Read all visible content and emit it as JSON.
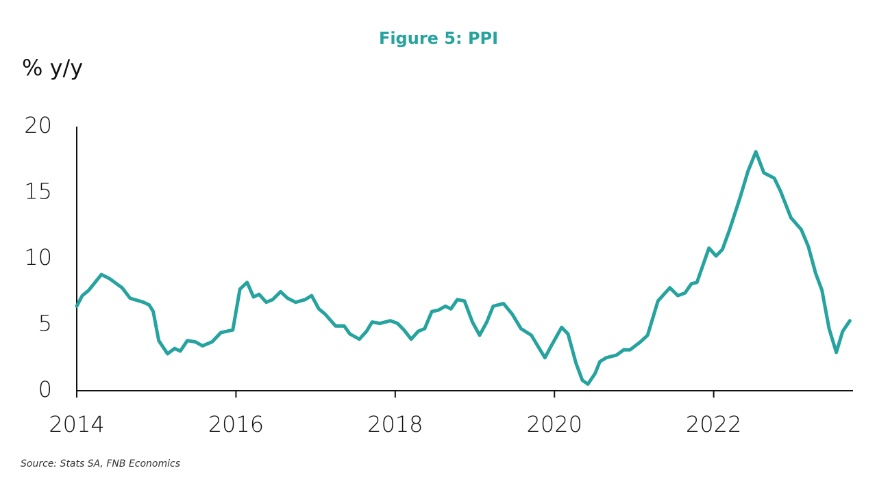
{
  "chart_data": {
    "type": "line",
    "title": "Figure 5: PPI",
    "y_label": "% y/y",
    "source": "Source: Stats SA, FNB Economics",
    "x": [
      2014.0,
      2014.07,
      2014.15,
      2014.31,
      2014.41,
      2014.57,
      2014.67,
      2014.84,
      2014.91,
      2014.96,
      2015.03,
      2015.14,
      2015.23,
      2015.3,
      2015.39,
      2015.49,
      2015.58,
      2015.7,
      2015.81,
      2015.96,
      2016.05,
      2016.14,
      2016.22,
      2016.29,
      2016.38,
      2016.46,
      2016.56,
      2016.65,
      2016.75,
      2016.87,
      2016.95,
      2017.04,
      2017.12,
      2017.25,
      2017.36,
      2017.43,
      2017.55,
      2017.64,
      2017.71,
      2017.81,
      2017.94,
      2018.03,
      2018.11,
      2018.2,
      2018.29,
      2018.37,
      2018.46,
      2018.54,
      2018.63,
      2018.7,
      2018.78,
      2018.87,
      2018.97,
      2019.06,
      2019.15,
      2019.23,
      2019.36,
      2019.47,
      2019.58,
      2019.71,
      2019.79,
      2019.88,
      2019.96,
      2020.09,
      2020.17,
      2020.27,
      2020.35,
      2020.42,
      2020.51,
      2020.57,
      2020.65,
      2020.78,
      2020.87,
      2020.95,
      2021.08,
      2021.17,
      2021.3,
      2021.45,
      2021.55,
      2021.64,
      2021.72,
      2021.79,
      2021.94,
      2022.03,
      2022.11,
      2022.2,
      2022.33,
      2022.43,
      2022.53,
      2022.63,
      2022.76,
      2022.84,
      2022.97,
      2023.1,
      2023.19,
      2023.28,
      2023.36,
      2023.45,
      2023.54,
      2023.62,
      2023.71
    ],
    "values": [
      6.4,
      7.2,
      7.6,
      8.8,
      8.5,
      7.8,
      7.0,
      6.7,
      6.5,
      6.0,
      3.8,
      2.8,
      3.2,
      3.0,
      3.8,
      3.7,
      3.4,
      3.7,
      4.4,
      4.6,
      7.7,
      8.2,
      7.1,
      7.3,
      6.7,
      6.9,
      7.5,
      7.0,
      6.7,
      6.9,
      7.2,
      6.2,
      5.8,
      4.9,
      4.9,
      4.3,
      3.9,
      4.5,
      5.2,
      5.1,
      5.3,
      5.1,
      4.6,
      3.9,
      4.5,
      4.7,
      6.0,
      6.1,
      6.4,
      6.2,
      6.9,
      6.8,
      5.2,
      4.2,
      5.2,
      6.4,
      6.6,
      5.8,
      4.7,
      4.2,
      3.4,
      2.5,
      3.4,
      4.8,
      4.3,
      2.1,
      0.8,
      0.5,
      1.3,
      2.2,
      2.5,
      2.7,
      3.1,
      3.1,
      3.7,
      4.2,
      6.8,
      7.8,
      7.2,
      7.4,
      8.1,
      8.2,
      10.8,
      10.2,
      10.7,
      12.2,
      14.6,
      16.6,
      18.1,
      16.5,
      16.1,
      15.1,
      13.1,
      12.2,
      10.9,
      8.9,
      7.6,
      4.7,
      2.9,
      4.5,
      5.3
    ],
    "color": "#26a39e",
    "xlim": [
      2014,
      2023.75
    ],
    "xticks": [
      2014,
      2016,
      2018,
      2020,
      2022
    ],
    "ylim": [
      0,
      20
    ],
    "yticks": [
      0,
      5,
      10,
      15,
      20
    ]
  }
}
